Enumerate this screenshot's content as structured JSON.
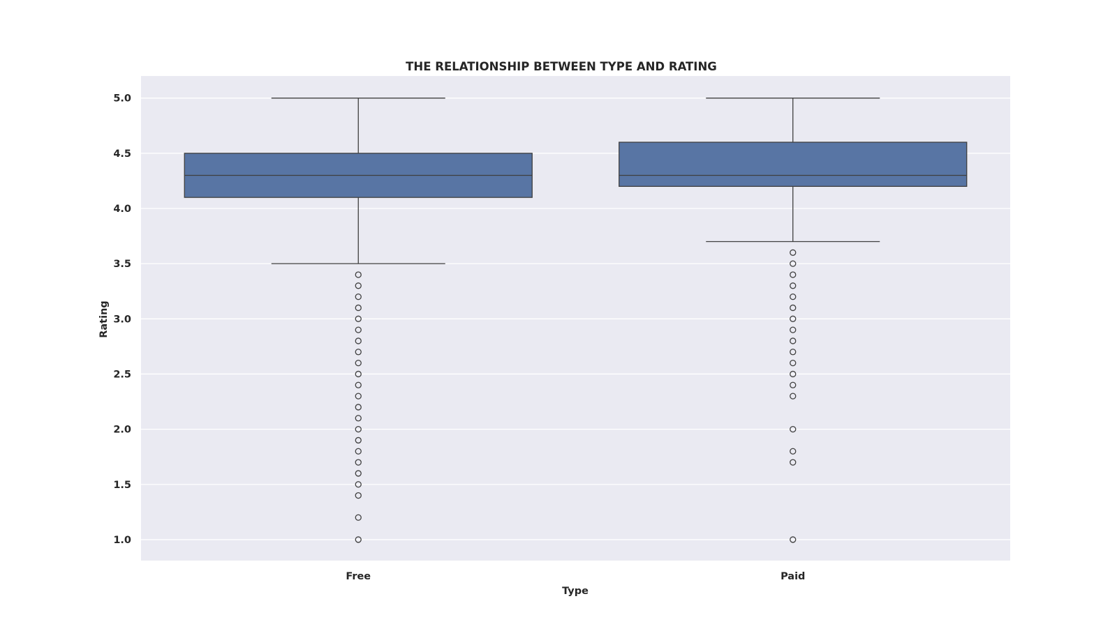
{
  "chart_data": {
    "type": "box",
    "title": "THE RELATIONSHIP BETWEEN TYPE AND RATING",
    "xlabel": "Type",
    "ylabel": "Rating",
    "categories": [
      "Free",
      "Paid"
    ],
    "ylim": [
      0.81,
      5.2
    ],
    "yticks": [
      1.0,
      1.5,
      2.0,
      2.5,
      3.0,
      3.5,
      4.0,
      4.5,
      5.0
    ],
    "ytick_labels": [
      "1.0",
      "1.5",
      "2.0",
      "2.5",
      "3.0",
      "3.5",
      "4.0",
      "4.5",
      "5.0"
    ],
    "grid": true,
    "colors": {
      "box_fill": "#5875a4",
      "box_edge": "#3f3f3f",
      "plot_background": "#eaeaf2",
      "grid": "#ffffff"
    },
    "series": [
      {
        "category": "Free",
        "whisker_low": 3.5,
        "q1": 4.1,
        "median": 4.3,
        "q3": 4.5,
        "whisker_high": 5.0,
        "outliers": [
          3.4,
          3.3,
          3.2,
          3.1,
          3.0,
          2.9,
          2.8,
          2.7,
          2.6,
          2.5,
          2.4,
          2.3,
          2.2,
          2.1,
          2.0,
          1.9,
          1.8,
          1.7,
          1.6,
          1.5,
          1.4,
          1.2,
          1.0
        ]
      },
      {
        "category": "Paid",
        "whisker_low": 3.7,
        "q1": 4.2,
        "median": 4.3,
        "q3": 4.6,
        "whisker_high": 5.0,
        "outliers": [
          3.6,
          3.5,
          3.4,
          3.3,
          3.2,
          3.1,
          3.0,
          2.9,
          2.8,
          2.7,
          2.6,
          2.5,
          2.4,
          2.3,
          2.0,
          1.8,
          1.7,
          1.0
        ]
      }
    ]
  }
}
